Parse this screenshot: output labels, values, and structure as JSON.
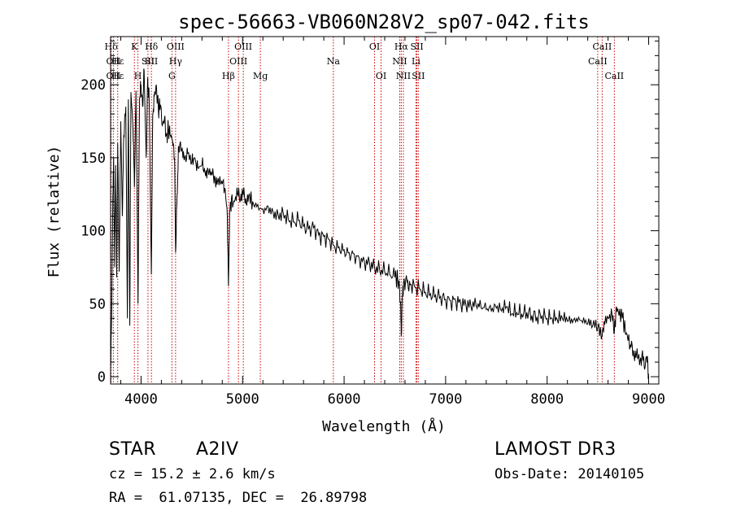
{
  "chart_data": {
    "type": "line",
    "title": "spec-56663-VB060N28V2_sp07-042.fits",
    "xlabel": "Wavelength (Å)",
    "ylabel": "Flux (relative)",
    "xlim": [
      3700,
      9100
    ],
    "ylim": [
      -5,
      233
    ],
    "x_ticks": [
      4000,
      5000,
      6000,
      7000,
      8000,
      9000
    ],
    "y_ticks": [
      0,
      50,
      100,
      150,
      200
    ],
    "line_color": "#000000",
    "marker_color": "#cc0000",
    "spectrum": [
      [
        3700,
        5
      ],
      [
        3710,
        40
      ],
      [
        3720,
        110
      ],
      [
        3730,
        150
      ],
      [
        3740,
        75
      ],
      [
        3750,
        145
      ],
      [
        3760,
        68
      ],
      [
        3770,
        160
      ],
      [
        3785,
        72
      ],
      [
        3800,
        175
      ],
      [
        3815,
        110
      ],
      [
        3830,
        165
      ],
      [
        3850,
        185
      ],
      [
        3865,
        40
      ],
      [
        3875,
        190
      ],
      [
        3889,
        35
      ],
      [
        3900,
        195
      ],
      [
        3920,
        170
      ],
      [
        3935,
        130
      ],
      [
        3950,
        196
      ],
      [
        3970,
        50
      ],
      [
        3985,
        190
      ],
      [
        4000,
        200
      ],
      [
        4015,
        185
      ],
      [
        4030,
        210
      ],
      [
        4050,
        150
      ],
      [
        4065,
        205
      ],
      [
        4080,
        190
      ],
      [
        4101,
        70
      ],
      [
        4115,
        180
      ],
      [
        4130,
        192
      ],
      [
        4150,
        200
      ],
      [
        4170,
        183
      ],
      [
        4190,
        186
      ],
      [
        4210,
        172
      ],
      [
        4230,
        177
      ],
      [
        4250,
        165
      ],
      [
        4270,
        170
      ],
      [
        4290,
        165
      ],
      [
        4310,
        162
      ],
      [
        4330,
        150
      ],
      [
        4340,
        85
      ],
      [
        4355,
        125
      ],
      [
        4370,
        158
      ],
      [
        4400,
        155
      ],
      [
        4430,
        150
      ],
      [
        4460,
        153
      ],
      [
        4500,
        147
      ],
      [
        4530,
        150
      ],
      [
        4560,
        143
      ],
      [
        4600,
        145
      ],
      [
        4630,
        140
      ],
      [
        4660,
        142
      ],
      [
        4700,
        138
      ],
      [
        4730,
        135
      ],
      [
        4760,
        136
      ],
      [
        4800,
        132
      ],
      [
        4830,
        128
      ],
      [
        4850,
        110
      ],
      [
        4861,
        62
      ],
      [
        4872,
        112
      ],
      [
        4890,
        122
      ],
      [
        4920,
        120
      ],
      [
        4950,
        125
      ],
      [
        4980,
        122
      ],
      [
        5000,
        126
      ],
      [
        5030,
        122
      ],
      [
        5060,
        124
      ],
      [
        5100,
        120
      ],
      [
        5150,
        118
      ],
      [
        5200,
        115
      ],
      [
        5250,
        117
      ],
      [
        5300,
        113
      ],
      [
        5350,
        111
      ],
      [
        5400,
        112
      ],
      [
        5450,
        108
      ],
      [
        5500,
        106
      ],
      [
        5550,
        107
      ],
      [
        5600,
        103
      ],
      [
        5650,
        101
      ],
      [
        5700,
        102
      ],
      [
        5750,
        97
      ],
      [
        5800,
        96
      ],
      [
        5850,
        94
      ],
      [
        5900,
        90
      ],
      [
        5950,
        89
      ],
      [
        6000,
        87
      ],
      [
        6050,
        85
      ],
      [
        6100,
        84
      ],
      [
        6150,
        81
      ],
      [
        6200,
        79
      ],
      [
        6250,
        78
      ],
      [
        6300,
        75
      ],
      [
        6350,
        73
      ],
      [
        6400,
        72
      ],
      [
        6450,
        70
      ],
      [
        6500,
        68
      ],
      [
        6540,
        66
      ],
      [
        6556,
        50
      ],
      [
        6563,
        28
      ],
      [
        6570,
        48
      ],
      [
        6585,
        64
      ],
      [
        6620,
        65
      ],
      [
        6650,
        63
      ],
      [
        6700,
        61
      ],
      [
        6750,
        60
      ],
      [
        6800,
        58
      ],
      [
        6850,
        57
      ],
      [
        6900,
        56
      ],
      [
        6950,
        55
      ],
      [
        7000,
        53
      ],
      [
        7050,
        52
      ],
      [
        7100,
        52
      ],
      [
        7150,
        50
      ],
      [
        7200,
        49
      ],
      [
        7250,
        48
      ],
      [
        7300,
        49
      ],
      [
        7350,
        47
      ],
      [
        7400,
        46
      ],
      [
        7450,
        45
      ],
      [
        7500,
        47
      ],
      [
        7550,
        45
      ],
      [
        7600,
        48
      ],
      [
        7650,
        43
      ],
      [
        7700,
        44
      ],
      [
        7750,
        43
      ],
      [
        7800,
        44
      ],
      [
        7850,
        42
      ],
      [
        7900,
        41
      ],
      [
        7950,
        42
      ],
      [
        8000,
        40
      ],
      [
        8050,
        40
      ],
      [
        8100,
        39
      ],
      [
        8150,
        40
      ],
      [
        8200,
        38
      ],
      [
        8250,
        37
      ],
      [
        8300,
        38
      ],
      [
        8350,
        37
      ],
      [
        8400,
        36
      ],
      [
        8450,
        35
      ],
      [
        8500,
        34
      ],
      [
        8542,
        28
      ],
      [
        8560,
        38
      ],
      [
        8600,
        40
      ],
      [
        8640,
        42
      ],
      [
        8662,
        30
      ],
      [
        8680,
        48
      ],
      [
        8700,
        45
      ],
      [
        8740,
        40
      ],
      [
        8780,
        30
      ],
      [
        8820,
        22
      ],
      [
        8850,
        18
      ],
      [
        8880,
        15
      ],
      [
        8910,
        8
      ],
      [
        8940,
        18
      ],
      [
        8960,
        5
      ],
      [
        8980,
        14
      ],
      [
        9000,
        2
      ]
    ],
    "lines": [
      {
        "label": "Hδ",
        "x": 3705,
        "row": 0
      },
      {
        "label": "OII",
        "x": 3727,
        "row": 1
      },
      {
        "label": "OII",
        "x": 3727,
        "row": 2
      },
      {
        "label": "Hε",
        "x": 3770,
        "row": 1
      },
      {
        "label": "Hε",
        "x": 3770,
        "row": 2
      },
      {
        "label": "K",
        "x": 3934,
        "row": 0
      },
      {
        "label": "H",
        "x": 3969,
        "row": 2
      },
      {
        "label": "SII",
        "x": 4068,
        "row": 1
      },
      {
        "label": "Hδ",
        "x": 4102,
        "row": 0
      },
      {
        "label": "SII",
        "x": 4102,
        "row": 1
      },
      {
        "label": "OIII",
        "x": 4340,
        "row": 0
      },
      {
        "label": "Hγ",
        "x": 4340,
        "row": 1
      },
      {
        "label": "G",
        "x": 4304,
        "row": 2
      },
      {
        "label": "Hβ",
        "x": 4861,
        "row": 2
      },
      {
        "label": "OIII",
        "x": 5007,
        "row": 0
      },
      {
        "label": "OIII",
        "x": 4959,
        "row": 1
      },
      {
        "label": "Mg",
        "x": 5175,
        "row": 2
      },
      {
        "label": "Na",
        "x": 5894,
        "row": 1
      },
      {
        "label": "OI",
        "x": 6300,
        "row": 0
      },
      {
        "label": "OI",
        "x": 6364,
        "row": 2
      },
      {
        "label": "Hα",
        "x": 6563,
        "row": 0
      },
      {
        "label": "NII",
        "x": 6548,
        "row": 1
      },
      {
        "label": "NII",
        "x": 6584,
        "row": 2
      },
      {
        "label": "SII",
        "x": 6717,
        "row": 0
      },
      {
        "label": "Li",
        "x": 6708,
        "row": 1
      },
      {
        "label": "SII",
        "x": 6731,
        "row": 2
      },
      {
        "label": "CaII",
        "x": 8542,
        "row": 0
      },
      {
        "label": "CaII",
        "x": 8498,
        "row": 1
      },
      {
        "label": "CaII",
        "x": 8662,
        "row": 2
      }
    ]
  },
  "info": {
    "object_class": "STAR",
    "subclass": "A2IV",
    "survey": "LAMOST DR3",
    "cz": "cz = 15.2 ± 2.6 km/s",
    "obs_date": "Obs-Date: 20140105",
    "coords": "RA =  61.07135, DEC =  26.89798"
  }
}
